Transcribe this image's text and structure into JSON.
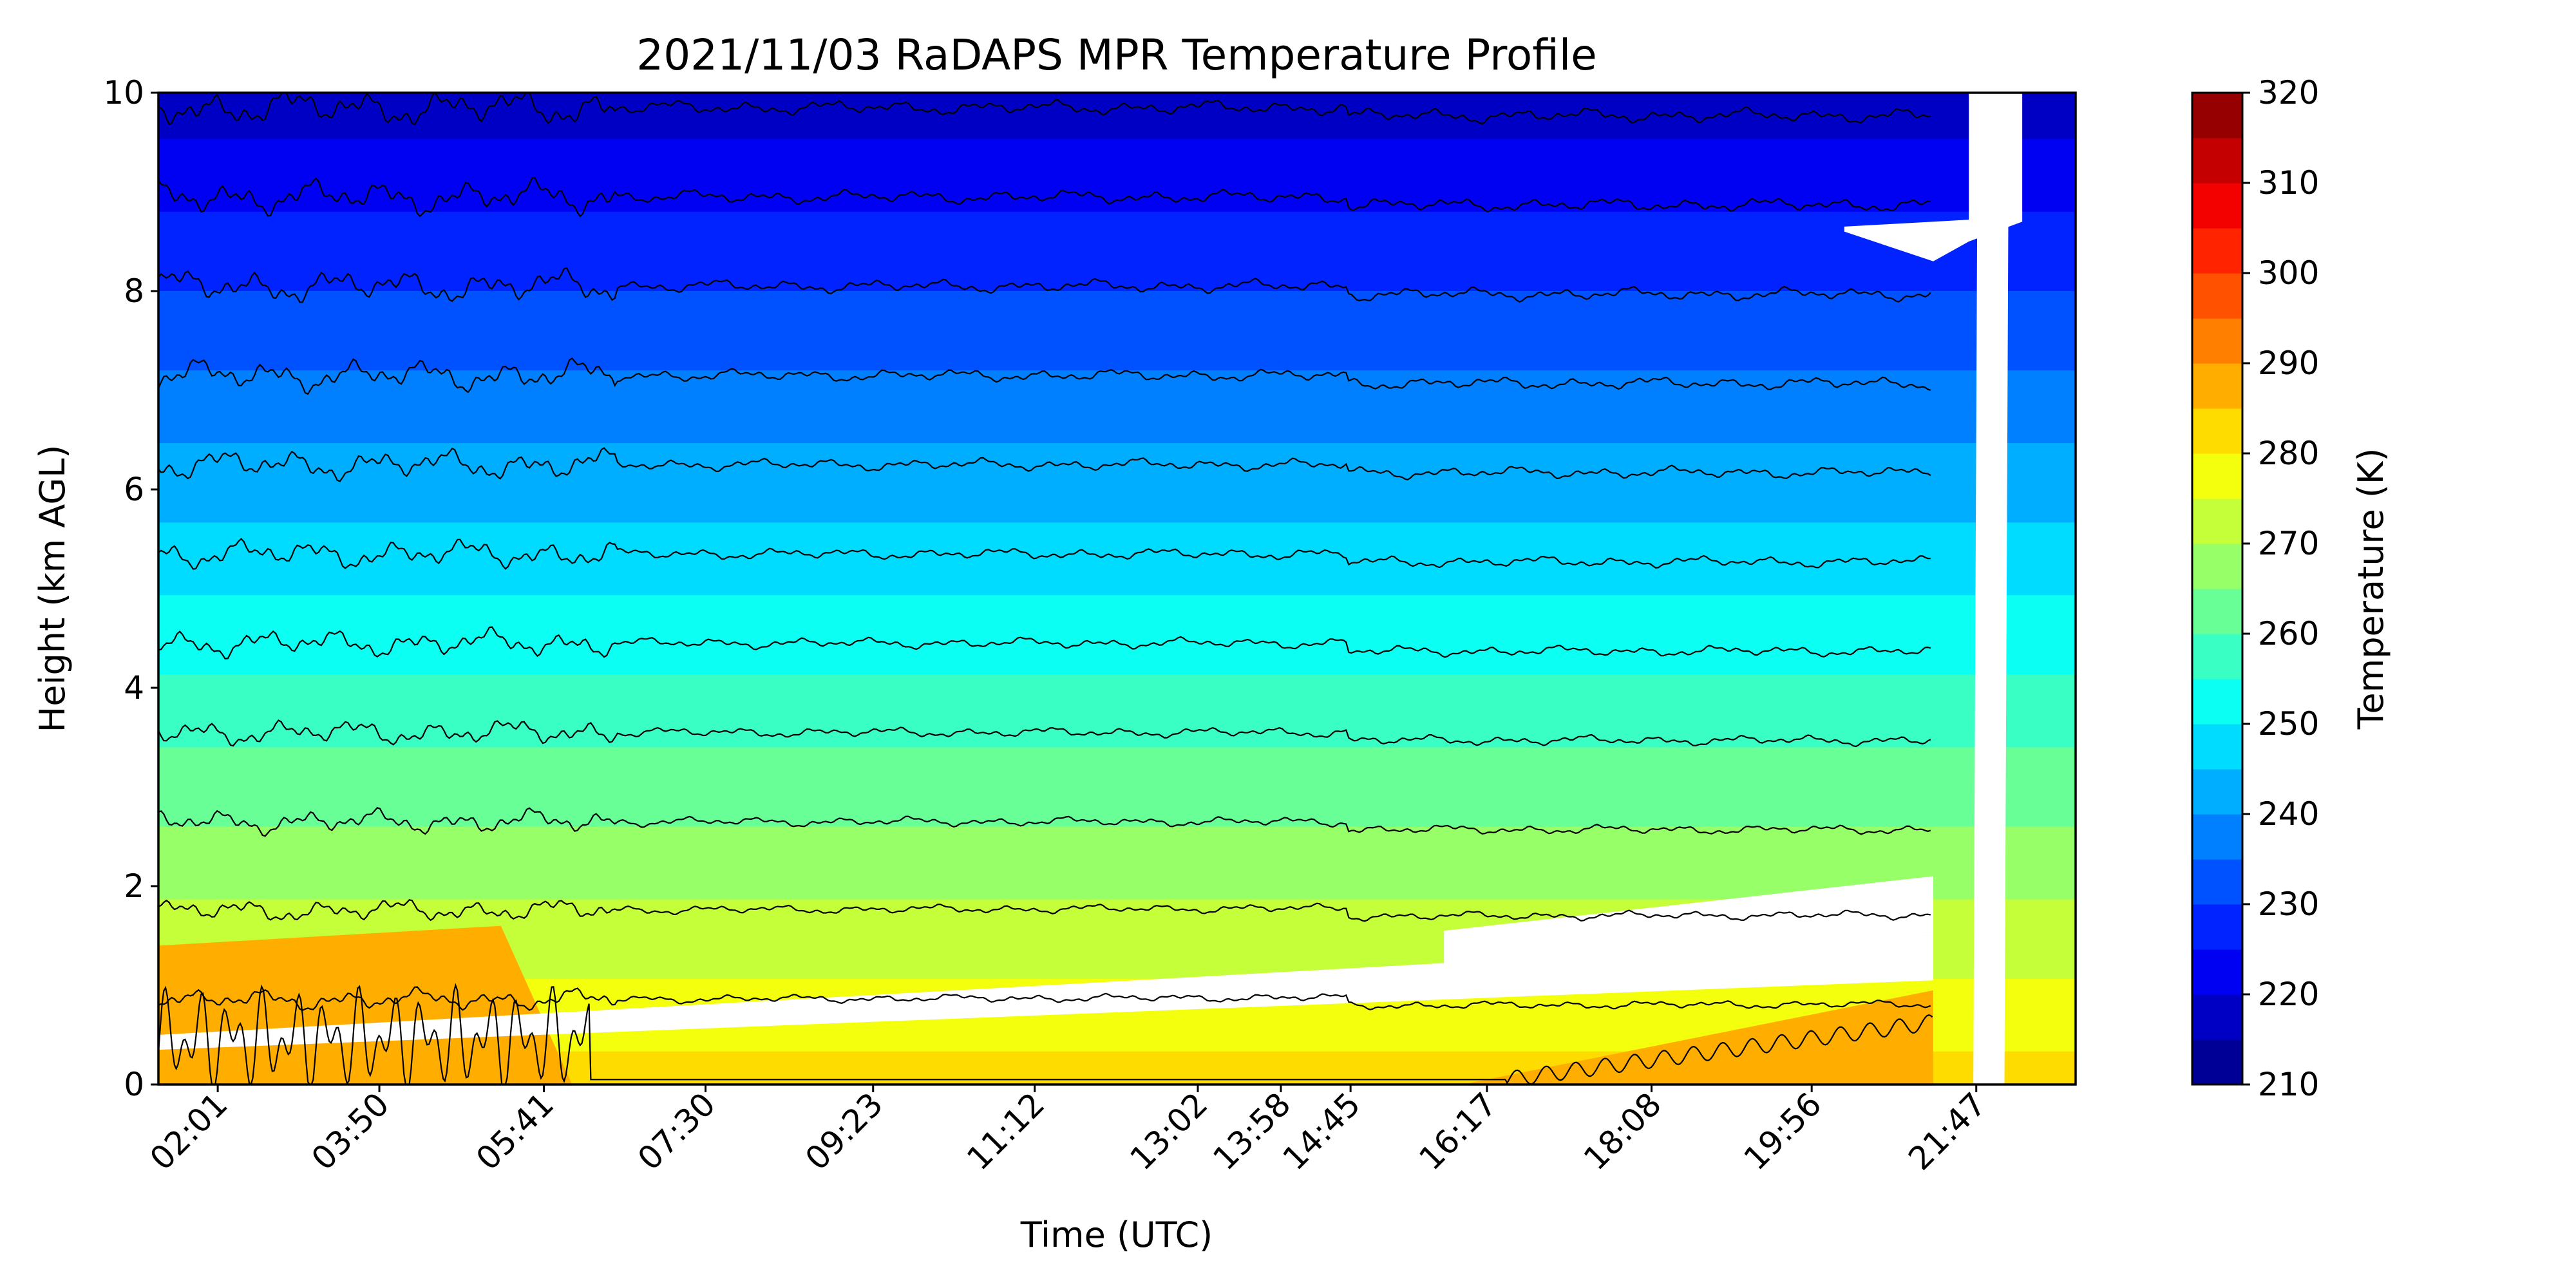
{
  "chart_data": {
    "type": "heatmap",
    "title": "2021/11/03 RaDAPS MPR Temperature Profile",
    "xlabel": "Time (UTC)",
    "ylabel": "Height (km AGL)",
    "x_ticks": [
      "02:01",
      "03:50",
      "05:41",
      "07:30",
      "09:23",
      "11:12",
      "13:02",
      "13:58",
      "14:45",
      "16:17",
      "18:08",
      "19:56",
      "21:47"
    ],
    "x_tick_hours": [
      2.0167,
      3.8333,
      5.6833,
      7.5,
      9.3833,
      11.2,
      13.0333,
      13.9667,
      14.75,
      16.2833,
      18.1333,
      19.9333,
      21.7833
    ],
    "x_range_hours": [
      1.35,
      22.9
    ],
    "y_ticks": [
      "0",
      "2",
      "4",
      "6",
      "8",
      "10"
    ],
    "ylim": [
      0,
      10
    ],
    "colorbar": {
      "label": "Temperature (K)",
      "range": [
        210,
        320
      ],
      "step": 5,
      "tick_labels": [
        "210",
        "220",
        "230",
        "240",
        "250",
        "260",
        "270",
        "280",
        "290",
        "300",
        "310",
        "320"
      ]
    },
    "isotherm_interval_K": 5,
    "surface_temperature_K": 282,
    "lapse_rate_K_per_km": 6.5,
    "contours_drawn": true,
    "colormap": "jet"
  }
}
